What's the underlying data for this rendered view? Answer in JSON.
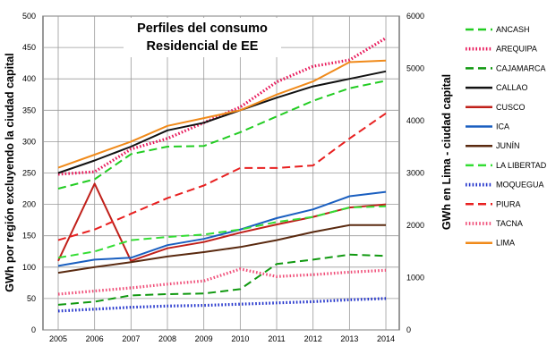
{
  "chart_data": {
    "type": "line",
    "title": [
      "Perfiles del consumo",
      "Residencial de EE"
    ],
    "ylabel_left": "GWh por región excluyendo la ciudad capital",
    "ylabel_right": "GWh en Lima - ciudad capital",
    "xlabel": "",
    "x": [
      "2005",
      "2006",
      "2007",
      "2008",
      "2009",
      "2010",
      "2011",
      "2012",
      "2013",
      "2014"
    ],
    "ylim_left": [
      0,
      500
    ],
    "yticks_left": [
      "0",
      "50",
      "100",
      "150",
      "200",
      "250",
      "300",
      "350",
      "400",
      "450",
      "500"
    ],
    "ylim_right": [
      0,
      6000
    ],
    "yticks_right": [
      "0",
      "1000",
      "2000",
      "3000",
      "4000",
      "5000",
      "6000"
    ],
    "grid": true,
    "legend_position": "right",
    "series": [
      {
        "name": "ANCASH",
        "color": "#22cc22",
        "dash": "long",
        "axis": "left",
        "values": [
          225,
          240,
          280,
          292,
          293,
          315,
          340,
          365,
          385,
          397
        ]
      },
      {
        "name": "AREQUIPA",
        "color": "#e8185a",
        "dash": "dot",
        "axis": "left",
        "values": [
          248,
          252,
          288,
          305,
          330,
          355,
          395,
          420,
          430,
          465
        ]
      },
      {
        "name": "CAJAMARCA",
        "color": "#119911",
        "dash": "long",
        "axis": "left",
        "values": [
          40,
          45,
          55,
          57,
          58,
          65,
          105,
          112,
          120,
          118
        ]
      },
      {
        "name": "CALLAO",
        "color": "#111111",
        "dash": "solid",
        "axis": "left",
        "values": [
          250,
          270,
          292,
          318,
          330,
          350,
          370,
          388,
          400,
          412
        ]
      },
      {
        "name": "CUSCO",
        "color": "#c0201a",
        "dash": "solid",
        "axis": "left",
        "values": [
          110,
          233,
          110,
          130,
          140,
          155,
          168,
          180,
          195,
          200
        ]
      },
      {
        "name": "ICA",
        "color": "#1a5fc0",
        "dash": "solid",
        "axis": "left",
        "values": [
          102,
          112,
          115,
          135,
          145,
          160,
          178,
          192,
          213,
          220
        ]
      },
      {
        "name": "JUNÍN",
        "color": "#5a2a10",
        "dash": "solid",
        "axis": "left",
        "values": [
          91,
          100,
          108,
          117,
          124,
          132,
          143,
          156,
          167,
          167
        ]
      },
      {
        "name": "LA LIBERTAD",
        "color": "#33dd33",
        "dash": "long",
        "axis": "left",
        "values": [
          115,
          125,
          143,
          148,
          152,
          160,
          172,
          180,
          195,
          197
        ]
      },
      {
        "name": "MOQUEGUA",
        "color": "#2233cc",
        "dash": "dot",
        "axis": "left",
        "values": [
          30,
          33,
          36,
          38,
          39,
          41,
          43,
          45,
          48,
          50
        ]
      },
      {
        "name": "PIURA",
        "color": "#e82020",
        "dash": "long",
        "axis": "left",
        "values": [
          143,
          160,
          185,
          210,
          230,
          258,
          258,
          262,
          305,
          345
        ]
      },
      {
        "name": "TACNA",
        "color": "#f0507a",
        "dash": "dot",
        "axis": "left",
        "values": [
          57,
          62,
          67,
          73,
          78,
          97,
          85,
          88,
          92,
          95
        ]
      },
      {
        "name": "LIMA",
        "color": "#f08a1a",
        "dash": "solid",
        "axis": "right",
        "values": [
          3100,
          3350,
          3600,
          3900,
          4050,
          4200,
          4500,
          4750,
          5120,
          5150
        ]
      }
    ]
  }
}
